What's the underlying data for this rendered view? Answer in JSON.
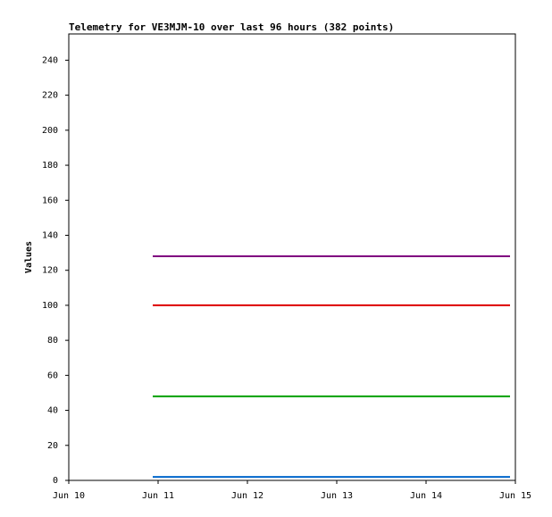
{
  "chart_data": {
    "type": "line",
    "title": "Telemetry for VE3MJM-10 over last 96 hours (382 points)",
    "y_label": "Values",
    "xlim": [
      10,
      15
    ],
    "xticks": [
      {
        "value": 10,
        "label": "Jun 10"
      },
      {
        "value": 11,
        "label": "Jun 11"
      },
      {
        "value": 12,
        "label": "Jun 12"
      },
      {
        "value": 13,
        "label": "Jun 13"
      },
      {
        "value": 14,
        "label": "Jun 14"
      },
      {
        "value": 15,
        "label": "Jun 15"
      }
    ],
    "ylim": [
      0,
      255
    ],
    "yticks": [
      0,
      20,
      40,
      60,
      80,
      100,
      120,
      140,
      160,
      180,
      200,
      220,
      240
    ],
    "series": [
      {
        "color": "#800080",
        "x": [
          10.94,
          14.94
        ],
        "values": [
          128,
          128
        ]
      },
      {
        "color": "#dd0000",
        "x": [
          10.94,
          14.94
        ],
        "values": [
          100,
          100
        ]
      },
      {
        "color": "#00a000",
        "x": [
          10.94,
          14.94
        ],
        "values": [
          48,
          48
        ]
      },
      {
        "color": "#0066cc",
        "x": [
          10.94,
          14.94
        ],
        "values": [
          2,
          2
        ]
      }
    ]
  }
}
